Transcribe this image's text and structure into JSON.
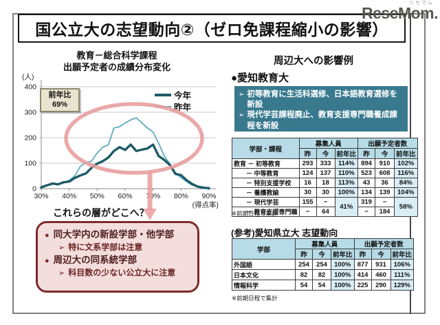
{
  "page": {
    "title": "国公立大の志望動向②（ゼロ免課程縮小の影響）",
    "logo": {
      "main": "ReseMom.",
      "ruby": "リセマム"
    }
  },
  "chart": {
    "title_line1": "教育－総合科学課程",
    "title_line2": "出願予定者の成績分布変化",
    "yoy_box": {
      "label": "前年比",
      "value": "69%"
    },
    "legend": {
      "this_year": "今年",
      "last_year": "昨年"
    },
    "colors": {
      "annotation": "#e89c9c",
      "this_year": "#1d5a66",
      "last_year": "#55a7bb"
    }
  },
  "chart_data": {
    "type": "line",
    "title": "教育－総合科学課程 出願予定者の成績分布変化",
    "xlabel": "(得点率)",
    "ylabel": "(人)",
    "xlim": [
      30,
      90
    ],
    "ylim": [
      0,
      400
    ],
    "grid": true,
    "legend_position": "top-right",
    "x_ticks": [
      "30%",
      "40%",
      "50%",
      "60%",
      "70%",
      "80%",
      "90%"
    ],
    "y_ticks": [
      0,
      100,
      200,
      300,
      400
    ],
    "x": [
      30,
      32,
      34,
      36,
      38,
      40,
      42,
      44,
      46,
      48,
      50,
      52,
      54,
      56,
      58,
      60,
      62,
      64,
      66,
      68,
      70,
      72,
      74,
      76,
      78,
      80,
      82,
      84,
      86,
      88,
      90
    ],
    "series": [
      {
        "name": "今年",
        "color": "#1d5a66",
        "width": 3.4,
        "values": [
          5,
          13,
          20,
          17,
          25,
          28,
          42,
          52,
          60,
          82,
          98,
          108,
          122,
          148,
          163,
          152,
          173,
          148,
          153,
          158,
          173,
          128,
          113,
          93,
          58,
          53,
          33,
          18,
          8,
          4,
          2
        ]
      },
      {
        "name": "昨年",
        "color": "#55a7bb",
        "width": 1.7,
        "values": [
          8,
          15,
          20,
          18,
          24,
          33,
          50,
          88,
          102,
          108,
          140,
          163,
          172,
          238,
          243,
          258,
          270,
          278,
          258,
          238,
          222,
          178,
          128,
          98,
          63,
          43,
          28,
          13,
          8,
          4,
          2
        ]
      }
    ],
    "annotations": [
      "前年比 69%",
      "楕円による強調（50〜80%帯）",
      "70%帯から下方への矢印"
    ]
  },
  "left_notes": {
    "question": "これらの層がどこへ？",
    "box": {
      "items": [
        {
          "text": "同大学内の新設学部・他学部",
          "sub": "特に文系学部は注意"
        },
        {
          "text": "周辺大の同系統学部",
          "sub": "科目数の少ない公立大に注意"
        }
      ]
    }
  },
  "right": {
    "heading": "周辺大への影響例",
    "uni_heading": "●愛知教育大",
    "teal_items": [
      "初等教育に生活科選修、日本語教育選修を新設",
      "現代学芸課程廃止、教育支援専門職養成課程を新設"
    ],
    "table1": {
      "header": {
        "label": "学部・課程",
        "group1": "募集人員",
        "group2": "出願予定者数",
        "sub": [
          "昨",
          "今",
          "前年比",
          "昨",
          "今",
          "前年比"
        ]
      },
      "rows": [
        [
          {
            "t": "教育 － 初等教育",
            "cls": "lbl"
          },
          {
            "t": "293"
          },
          {
            "t": "333"
          },
          {
            "t": "114%",
            "cls": "pct"
          },
          {
            "t": "894"
          },
          {
            "t": "910"
          },
          {
            "t": "102%",
            "cls": "pct"
          }
        ],
        [
          {
            "t": "　　－ 中等教育",
            "cls": "lbl"
          },
          {
            "t": "124"
          },
          {
            "t": "137"
          },
          {
            "t": "110%",
            "cls": "pct"
          },
          {
            "t": "523"
          },
          {
            "t": "608"
          },
          {
            "t": "116%",
            "cls": "pct"
          }
        ],
        [
          {
            "t": "　　－ 特別支援学校",
            "cls": "lbl"
          },
          {
            "t": "16"
          },
          {
            "t": "18"
          },
          {
            "t": "113%",
            "cls": "pct"
          },
          {
            "t": "43"
          },
          {
            "t": "36"
          },
          {
            "t": "84%",
            "cls": "pct"
          }
        ],
        [
          {
            "t": "　　－ 養護教諭",
            "cls": "lbl"
          },
          {
            "t": "30"
          },
          {
            "t": "30"
          },
          {
            "t": "100%",
            "cls": "pct"
          },
          {
            "t": "134"
          },
          {
            "t": "139"
          },
          {
            "t": "104%",
            "cls": "pct"
          }
        ],
        [
          {
            "t": "　　－ 現代学芸",
            "cls": "lbl"
          },
          {
            "t": "155"
          },
          {
            "t": "−"
          },
          {
            "t": "41%",
            "cls": "pct",
            "rs": 2
          },
          {
            "t": "319"
          },
          {
            "t": "−"
          },
          {
            "t": "58%",
            "cls": "pct",
            "rs": 2
          }
        ],
        [
          {
            "t": "　　－ 教育支援専門職",
            "cls": "lbl"
          },
          {
            "t": "−"
          },
          {
            "t": "64"
          },
          {
            "t": "−"
          },
          {
            "t": "184"
          }
        ]
      ]
    },
    "table1_note": "※前期日程で集計",
    "ref_heading": "(参考)愛知県立大 志望動向",
    "table2": {
      "header": {
        "label": "学部",
        "group1": "募集人員",
        "group2": "出願予定者数",
        "sub": [
          "昨",
          "今",
          "前年比",
          "昨",
          "今",
          "前年比"
        ]
      },
      "rows": [
        [
          {
            "t": "外国語",
            "cls": "lbl"
          },
          {
            "t": "254"
          },
          {
            "t": "254"
          },
          {
            "t": "100%",
            "cls": "pct"
          },
          {
            "t": "877"
          },
          {
            "t": "931"
          },
          {
            "t": "106%",
            "cls": "pct"
          }
        ],
        [
          {
            "t": "日本文化",
            "cls": "lbl"
          },
          {
            "t": "82"
          },
          {
            "t": "82"
          },
          {
            "t": "100%",
            "cls": "pct"
          },
          {
            "t": "414"
          },
          {
            "t": "460"
          },
          {
            "t": "111%",
            "cls": "pct"
          }
        ],
        [
          {
            "t": "情報科学",
            "cls": "lbl"
          },
          {
            "t": "54"
          },
          {
            "t": "54"
          },
          {
            "t": "100%",
            "cls": "pct"
          },
          {
            "t": "225"
          },
          {
            "t": "290"
          },
          {
            "t": "129%",
            "cls": "pct"
          }
        ]
      ]
    },
    "table2_note": "※前期日程で集計"
  }
}
